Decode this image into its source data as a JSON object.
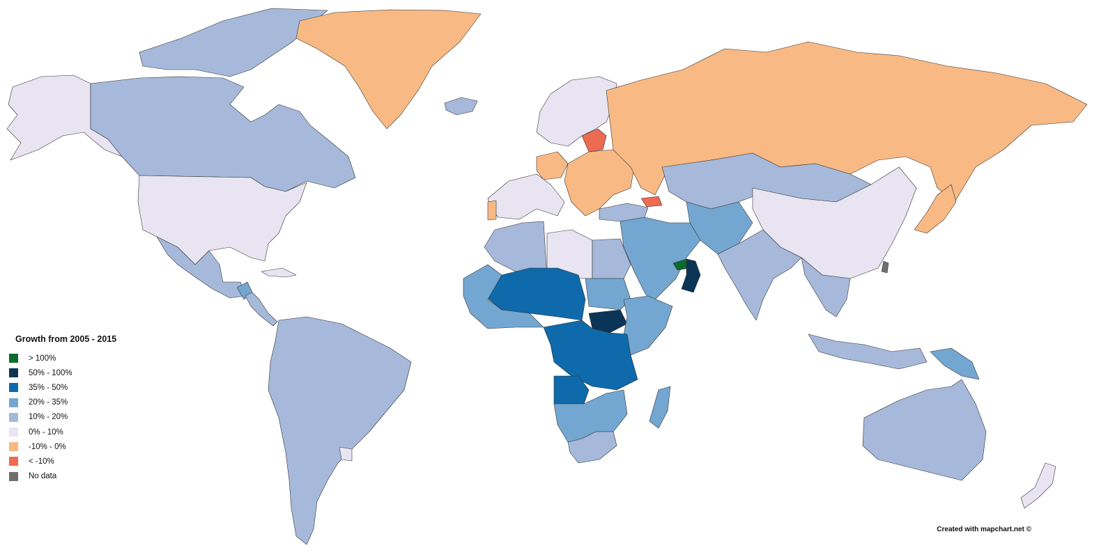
{
  "legend": {
    "title": "Growth from 2005 - 2015",
    "items": [
      {
        "label": "> 100%",
        "color": "#0b6b2e"
      },
      {
        "label": "50% - 100%",
        "color": "#0a3556"
      },
      {
        "label": "35% - 50%",
        "color": "#0e6aab"
      },
      {
        "label": "20% - 35%",
        "color": "#73a7d1"
      },
      {
        "label": "10% - 20%",
        "color": "#a6b9da"
      },
      {
        "label": "0% - 10%",
        "color": "#e8e4f1"
      },
      {
        "label": "-10% - 0%",
        "color": "#f8b984"
      },
      {
        "label": "< -10%",
        "color": "#ee6a52"
      },
      {
        "label": "No data",
        "color": "#6e6e6e"
      }
    ]
  },
  "credit": "Created with mapchart.net ©",
  "regions": [
    {
      "name": "alaska",
      "category": "0% - 10%"
    },
    {
      "name": "canada",
      "category": "10% - 20%"
    },
    {
      "name": "canadian-arctic-islands",
      "category": "10% - 20%"
    },
    {
      "name": "greenland",
      "category": "-10% - 0%"
    },
    {
      "name": "iceland",
      "category": "10% - 20%"
    },
    {
      "name": "united-states",
      "category": "0% - 10%"
    },
    {
      "name": "mexico",
      "category": "10% - 20%"
    },
    {
      "name": "central-america",
      "category": "10% - 20%"
    },
    {
      "name": "guatemala",
      "category": "20% - 35%"
    },
    {
      "name": "cuba",
      "category": "0% - 10%"
    },
    {
      "name": "south-america",
      "category": "10% - 20%"
    },
    {
      "name": "uruguay",
      "category": "0% - 10%"
    },
    {
      "name": "scandinavia",
      "category": "0% - 10%"
    },
    {
      "name": "baltic-states",
      "category": "< -10%"
    },
    {
      "name": "western-europe",
      "category": "0% - 10%"
    },
    {
      "name": "germany",
      "category": "-10% - 0%"
    },
    {
      "name": "portugal",
      "category": "-10% - 0%"
    },
    {
      "name": "eastern-europe",
      "category": "-10% - 0%"
    },
    {
      "name": "russia",
      "category": "-10% - 0%"
    },
    {
      "name": "japan",
      "category": "-10% - 0%"
    },
    {
      "name": "georgia",
      "category": "< -10%"
    },
    {
      "name": "turkey",
      "category": "10% - 20%"
    },
    {
      "name": "kazakhstan-mongolia",
      "category": "10% - 20%"
    },
    {
      "name": "central-asia",
      "category": "20% - 35%"
    },
    {
      "name": "china",
      "category": "0% - 10%"
    },
    {
      "name": "india",
      "category": "10% - 20%"
    },
    {
      "name": "southeast-asia",
      "category": "10% - 20%"
    },
    {
      "name": "indonesia",
      "category": "10% - 20%"
    },
    {
      "name": "papua-new-guinea",
      "category": "20% - 35%"
    },
    {
      "name": "australia",
      "category": "10% - 20%"
    },
    {
      "name": "new-zealand",
      "category": "0% - 10%"
    },
    {
      "name": "middle-east",
      "category": "20% - 35%"
    },
    {
      "name": "oman",
      "category": "50% - 100%"
    },
    {
      "name": "uae-qatar",
      "category": "> 100%"
    },
    {
      "name": "north-africa-west",
      "category": "10% - 20%"
    },
    {
      "name": "libya",
      "category": "0% - 10%"
    },
    {
      "name": "egypt",
      "category": "10% - 20%"
    },
    {
      "name": "sahel",
      "category": "35% - 50%"
    },
    {
      "name": "west-africa",
      "category": "20% - 35%"
    },
    {
      "name": "sudan",
      "category": "20% - 35%"
    },
    {
      "name": "south-sudan",
      "category": "50% - 100%"
    },
    {
      "name": "horn-of-africa",
      "category": "20% - 35%"
    },
    {
      "name": "central-africa",
      "category": "35% - 50%"
    },
    {
      "name": "angola",
      "category": "35% - 50%"
    },
    {
      "name": "southern-africa",
      "category": "20% - 35%"
    },
    {
      "name": "south-africa",
      "category": "10% - 20%"
    },
    {
      "name": "madagascar",
      "category": "20% - 35%"
    },
    {
      "name": "taiwan",
      "category": "No data"
    }
  ]
}
